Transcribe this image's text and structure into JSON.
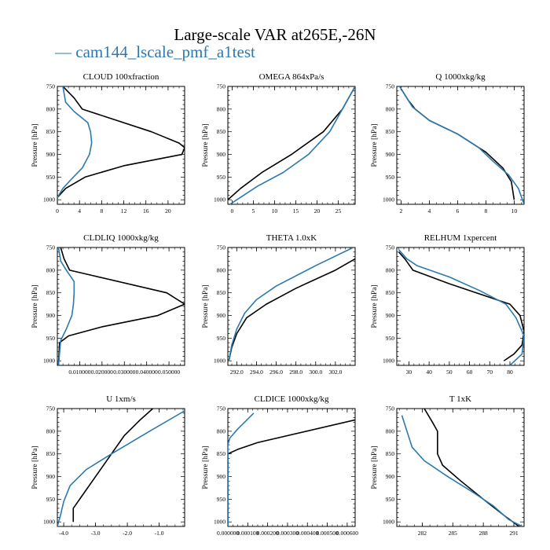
{
  "figure": {
    "title": "Large-scale VAR at265E,-26N",
    "legend_label": "— cam144_lscale_pmf_a1test",
    "legend_color": "#2a7ab0",
    "series_colors": [
      "#000000",
      "#2a7ab0"
    ]
  },
  "chart_data": [
    {
      "type": "line",
      "title": "CLOUD  100xfraction",
      "ylabel": "Pressure [hPa]",
      "xlim": [
        0,
        23
      ],
      "ylim": [
        750,
        1010
      ],
      "xticks": [
        0,
        4,
        8,
        12,
        16,
        20
      ],
      "xtick_labels": [
        "0",
        "4",
        "8",
        "12",
        "16",
        "20"
      ],
      "yticks": [
        750,
        800,
        850,
        900,
        950,
        1000
      ],
      "ytick_labels": [
        "750",
        "800",
        "850",
        "900",
        "950",
        "1000"
      ],
      "series": [
        {
          "name": "black",
          "values": [
            [
              1,
              750
            ],
            [
              3,
              775
            ],
            [
              4.5,
              800
            ],
            [
              17,
              850
            ],
            [
              22,
              875
            ],
            [
              23,
              885
            ],
            [
              22.5,
              900
            ],
            [
              12,
              925
            ],
            [
              5,
              950
            ],
            [
              1.5,
              975
            ],
            [
              0,
              995
            ],
            [
              0,
              1010
            ]
          ]
        },
        {
          "name": "cam144_lscale_pmf_a1test",
          "values": [
            [
              1,
              750
            ],
            [
              1.5,
              785
            ],
            [
              3,
              805
            ],
            [
              5.5,
              830
            ],
            [
              6,
              850
            ],
            [
              6.2,
              875
            ],
            [
              5.8,
              900
            ],
            [
              4.5,
              930
            ],
            [
              2.5,
              955
            ],
            [
              1,
              975
            ],
            [
              0,
              995
            ],
            [
              0,
              1010
            ]
          ]
        }
      ]
    },
    {
      "type": "line",
      "title": "OMEGA  864xPa/s",
      "ylabel": "Pressure [hPa]",
      "xlim": [
        -1,
        29
      ],
      "ylim": [
        750,
        1010
      ],
      "xticks": [
        0,
        5,
        10,
        15,
        20,
        25
      ],
      "xtick_labels": [
        "0",
        "5",
        "10",
        "15",
        "20",
        "25"
      ],
      "yticks": [
        750,
        800,
        850,
        900,
        950,
        1000
      ],
      "ytick_labels": [
        "750",
        "800",
        "850",
        "900",
        "950",
        "1000"
      ],
      "series": [
        {
          "name": "black",
          "values": [
            [
              29,
              750
            ],
            [
              26,
              800
            ],
            [
              21.5,
              850
            ],
            [
              14,
              900
            ],
            [
              7,
              940
            ],
            [
              2,
              975
            ],
            [
              -1,
              1000
            ]
          ]
        },
        {
          "name": "cam144_lscale_pmf_a1test",
          "values": [
            [
              29,
              750
            ],
            [
              26,
              800
            ],
            [
              23,
              850
            ],
            [
              18,
              900
            ],
            [
              12,
              940
            ],
            [
              6,
              970
            ],
            [
              -0.5,
              1010
            ]
          ]
        }
      ]
    },
    {
      "type": "line",
      "title": "Q  1000xkg/kg",
      "ylabel": "Pressure [hPa]",
      "xlim": [
        1.7,
        10.7
      ],
      "ylim": [
        750,
        1010
      ],
      "xticks": [
        2,
        4,
        6,
        8,
        10
      ],
      "xtick_labels": [
        "2",
        "4",
        "6",
        "8",
        "10"
      ],
      "yticks": [
        750,
        800,
        850,
        900,
        950,
        1000
      ],
      "ytick_labels": [
        "750",
        "800",
        "850",
        "900",
        "950",
        "1000"
      ],
      "series": [
        {
          "name": "black",
          "values": [
            [
              2,
              755
            ],
            [
              2.5,
              780
            ],
            [
              3,
              800
            ],
            [
              4,
              825
            ],
            [
              6,
              855
            ],
            [
              8,
              895
            ],
            [
              9.2,
              930
            ],
            [
              9.8,
              960
            ],
            [
              10,
              1000
            ]
          ]
        },
        {
          "name": "cam144_lscale_pmf_a1test",
          "values": [
            [
              1.9,
              750
            ],
            [
              2.3,
              770
            ],
            [
              2.8,
              795
            ],
            [
              4,
              825
            ],
            [
              6,
              855
            ],
            [
              7.5,
              885
            ],
            [
              8.5,
              915
            ],
            [
              9.6,
              945
            ],
            [
              10.3,
              975
            ],
            [
              10.7,
              1010
            ]
          ]
        }
      ]
    },
    {
      "type": "line",
      "title": "CLDLIQ  1000xkg/kg",
      "ylabel": "Pressure [hPa]",
      "xlim": [
        0,
        0.057
      ],
      "ylim": [
        750,
        1010
      ],
      "xticks": [
        0.01,
        0.02,
        0.03,
        0.04,
        0.05
      ],
      "xtick_labels": [
        "0.010000",
        "0.020000",
        "0.030000",
        "0.040000",
        "0.050000"
      ],
      "yticks": [
        750,
        800,
        850,
        900,
        950,
        1000
      ],
      "ytick_labels": [
        "750",
        "800",
        "850",
        "900",
        "950",
        "1000"
      ],
      "series": [
        {
          "name": "black",
          "values": [
            [
              0.0015,
              750
            ],
            [
              0.003,
              775
            ],
            [
              0.0055,
              800
            ],
            [
              0.049,
              850
            ],
            [
              0.057,
              875
            ],
            [
              0.045,
              900
            ],
            [
              0.02,
              925
            ],
            [
              0.005,
              945
            ],
            [
              0.001,
              960
            ],
            [
              0.0005,
              1010
            ]
          ]
        },
        {
          "name": "cam144_lscale_pmf_a1test",
          "values": [
            [
              0.0005,
              750
            ],
            [
              0.0015,
              780
            ],
            [
              0.004,
              800
            ],
            [
              0.0075,
              825
            ],
            [
              0.0075,
              850
            ],
            [
              0.0072,
              875
            ],
            [
              0.0065,
              900
            ],
            [
              0.004,
              930
            ],
            [
              0.0015,
              955
            ],
            [
              0.0005,
              1010
            ]
          ]
        }
      ]
    },
    {
      "type": "line",
      "title": "THETA  1.0xK",
      "ylabel": "Pressure [hPa]",
      "xlim": [
        291.1,
        304
      ],
      "ylim": [
        750,
        1010
      ],
      "xticks": [
        292,
        294,
        296,
        298,
        300,
        302
      ],
      "xtick_labels": [
        "292.0",
        "294.0",
        "296.0",
        "298.0",
        "300.0",
        "302.0"
      ],
      "yticks": [
        750,
        800,
        850,
        900,
        950,
        1000
      ],
      "ytick_labels": [
        "750",
        "800",
        "850",
        "900",
        "950",
        "1000"
      ],
      "series": [
        {
          "name": "black",
          "values": [
            [
              304,
              775
            ],
            [
              302,
              800
            ],
            [
              298,
              840
            ],
            [
              295,
              875
            ],
            [
              293,
              905
            ],
            [
              292,
              940
            ],
            [
              291.5,
              970
            ],
            [
              291.2,
              1000
            ]
          ]
        },
        {
          "name": "cam144_lscale_pmf_a1test",
          "values": [
            [
              303.8,
              750
            ],
            [
              300,
              790
            ],
            [
              296,
              835
            ],
            [
              294,
              865
            ],
            [
              292.8,
              895
            ],
            [
              292,
              930
            ],
            [
              291.5,
              965
            ],
            [
              291.2,
              1000
            ]
          ]
        }
      ]
    },
    {
      "type": "line",
      "title": "RELHUM  1xpercent",
      "ylabel": "Pressure [hPa]",
      "xlim": [
        24,
        87
      ],
      "ylim": [
        750,
        1010
      ],
      "xticks": [
        30,
        40,
        50,
        60,
        70,
        80
      ],
      "xtick_labels": [
        "30",
        "40",
        "50",
        "60",
        "70",
        "80"
      ],
      "yticks": [
        750,
        800,
        850,
        900,
        950,
        1000
      ],
      "ytick_labels": [
        "750",
        "800",
        "850",
        "900",
        "950",
        "1000"
      ],
      "series": [
        {
          "name": "black",
          "values": [
            [
              25,
              760
            ],
            [
              28,
              775
            ],
            [
              32,
              800
            ],
            [
              50,
              830
            ],
            [
              80,
              875
            ],
            [
              85,
              900
            ],
            [
              87,
              935
            ],
            [
              86,
              965
            ],
            [
              82,
              985
            ],
            [
              77,
              1000
            ]
          ]
        },
        {
          "name": "cam144_lscale_pmf_a1test",
          "values": [
            [
              25,
              755
            ],
            [
              29,
              775
            ],
            [
              34,
              790
            ],
            [
              50,
              815
            ],
            [
              65,
              845
            ],
            [
              78,
              875
            ],
            [
              83,
              905
            ],
            [
              87,
              945
            ],
            [
              86,
              985
            ],
            [
              80,
              1010
            ]
          ]
        }
      ]
    },
    {
      "type": "line",
      "title": "U  1xm/s",
      "ylabel": "Pressure [hPa]",
      "xlim": [
        -4.2,
        -0.2
      ],
      "ylim": [
        750,
        1010
      ],
      "xticks": [
        -4,
        -3,
        -2,
        -1
      ],
      "xtick_labels": [
        "-4.0",
        "-3.0",
        "-2.0",
        "-1.0"
      ],
      "yticks": [
        750,
        800,
        850,
        900,
        950,
        1000
      ],
      "ytick_labels": [
        "750",
        "800",
        "850",
        "900",
        "950",
        "1000"
      ],
      "series": [
        {
          "name": "black",
          "values": [
            [
              -1.2,
              750
            ],
            [
              -1.6,
              775
            ],
            [
              -2.1,
              810
            ],
            [
              -2.5,
              850
            ],
            [
              -3,
              900
            ],
            [
              -3.5,
              950
            ],
            [
              -3.7,
              970
            ],
            [
              -3.7,
              1000
            ]
          ]
        },
        {
          "name": "cam144_lscale_pmf_a1test",
          "values": [
            [
              -0.2,
              755
            ],
            [
              -1.3,
              800
            ],
            [
              -2.5,
              850
            ],
            [
              -3.3,
              885
            ],
            [
              -3.8,
              920
            ],
            [
              -4,
              955
            ],
            [
              -4.1,
              985
            ],
            [
              -4.2,
              1010
            ]
          ]
        }
      ]
    },
    {
      "type": "line",
      "title": "CLDICE  1000xkg/kg",
      "ylabel": "Pressure [hPa]",
      "xlim": [
        0,
        0.00064
      ],
      "ylim": [
        750,
        1010
      ],
      "xticks": [
        0,
        0.0001,
        0.0002,
        0.0003,
        0.0004,
        0.0005,
        0.0006
      ],
      "xtick_labels": [
        "0.000000",
        "0.000100",
        "0.000200",
        "0.000300",
        "0.000400",
        "0.000500",
        "0.000600"
      ],
      "yticks": [
        750,
        800,
        850,
        900,
        950,
        1000
      ],
      "ytick_labels": [
        "750",
        "800",
        "850",
        "900",
        "950",
        "1000"
      ],
      "series": [
        {
          "name": "black",
          "values": [
            [
              0.00064,
              775
            ],
            [
              0.00015,
              825
            ],
            [
              5e-05,
              840
            ],
            [
              0,
              850
            ],
            [
              0,
              1010
            ]
          ]
        },
        {
          "name": "cam144_lscale_pmf_a1test",
          "values": [
            [
              0.00013,
              760
            ],
            [
              5e-05,
              795
            ],
            [
              1e-05,
              815
            ],
            [
              0,
              830
            ],
            [
              0,
              1010
            ]
          ]
        }
      ]
    },
    {
      "type": "line",
      "title": "T  1xK",
      "ylabel": "Pressure [hPa]",
      "xlim": [
        279.5,
        292
      ],
      "ylim": [
        750,
        1010
      ],
      "xticks": [
        282,
        285,
        288,
        291
      ],
      "xtick_labels": [
        "282",
        "285",
        "288",
        "291"
      ],
      "yticks": [
        750,
        800,
        850,
        900,
        950,
        1000
      ],
      "ytick_labels": [
        "750",
        "800",
        "850",
        "900",
        "950",
        "1000"
      ],
      "series": [
        {
          "name": "black",
          "values": [
            [
              282.2,
              750
            ],
            [
              283,
              780
            ],
            [
              283.5,
              800
            ],
            [
              283.5,
              850
            ],
            [
              284,
              875
            ],
            [
              285.8,
              910
            ],
            [
              288,
              950
            ],
            [
              290,
              985
            ],
            [
              291.5,
              1010
            ]
          ]
        },
        {
          "name": "cam144_lscale_pmf_a1test",
          "values": [
            [
              280,
              765
            ],
            [
              280.5,
              800
            ],
            [
              281,
              835
            ],
            [
              282.2,
              865
            ],
            [
              284.5,
              900
            ],
            [
              287,
              935
            ],
            [
              289,
              965
            ],
            [
              290.5,
              995
            ],
            [
              291.8,
              1010
            ]
          ]
        }
      ]
    }
  ]
}
